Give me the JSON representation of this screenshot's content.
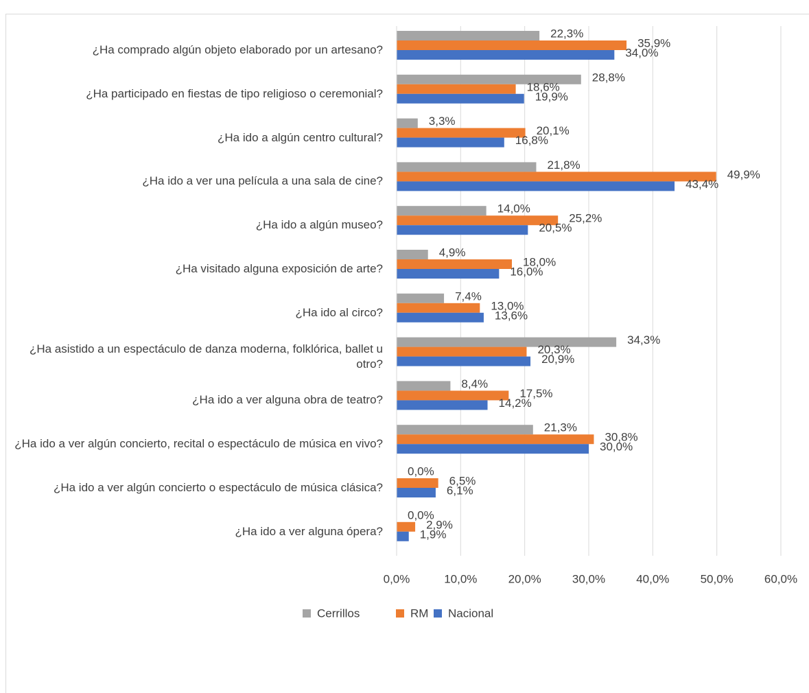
{
  "chart_data": {
    "type": "bar",
    "orientation": "horizontal",
    "categories": [
      "¿Ha comprado algún objeto elaborado por un artesano?",
      "¿Ha participado en fiestas de tipo religioso o ceremonial?",
      "¿Ha ido a algún centro cultural?",
      "¿Ha ido a ver una película a una sala de cine?",
      "¿Ha ido a algún museo?",
      "¿Ha visitado alguna exposición de arte?",
      "¿Ha ido al circo?",
      "¿Ha asistido a un espectáculo de danza moderna, folklórica, ballet u otro?",
      "¿Ha ido a ver alguna obra de teatro?",
      "¿Ha ido a ver algún concierto, recital o espectáculo de música en vivo?",
      "¿Ha ido a ver algún concierto o espectáculo de música clásica?",
      "¿Ha ido a ver alguna ópera?"
    ],
    "series": [
      {
        "name": "Cerrillos",
        "color": "#a5a5a5",
        "values": [
          22.3,
          28.8,
          3.3,
          21.8,
          14.0,
          4.9,
          7.4,
          34.3,
          8.4,
          21.3,
          0.0,
          0.0
        ],
        "value_labels": [
          "22,3%",
          "28,8%",
          "3,3%",
          "21,8%",
          "14,0%",
          "4,9%",
          "7,4%",
          "34,3%",
          "8,4%",
          "21,3%",
          "0,0%",
          "0,0%"
        ]
      },
      {
        "name": "RM",
        "color": "#ed7d31",
        "values": [
          35.9,
          18.6,
          20.1,
          49.9,
          25.2,
          18.0,
          13.0,
          20.3,
          17.5,
          30.8,
          6.5,
          2.9
        ],
        "value_labels": [
          "35,9%",
          "18,6%",
          "20,1%",
          "49,9%",
          "25,2%",
          "18,0%",
          "13,0%",
          "20,3%",
          "17,5%",
          "30,8%",
          "6,5%",
          "2,9%"
        ]
      },
      {
        "name": "Nacional",
        "color": "#4472c4",
        "values": [
          34.0,
          19.9,
          16.8,
          43.4,
          20.5,
          16.0,
          13.6,
          20.9,
          14.2,
          30.0,
          6.1,
          1.9
        ],
        "value_labels": [
          "34,0%",
          "19,9%",
          "16,8%",
          "43,4%",
          "20,5%",
          "16,0%",
          "13,6%",
          "20,9%",
          "14,2%",
          "30,0%",
          "6,1%",
          "1,9%"
        ]
      }
    ],
    "xlim": [
      0,
      60
    ],
    "xticks": [
      {
        "value": 0,
        "label": "0,0%"
      },
      {
        "value": 10,
        "label": "10,0%"
      },
      {
        "value": 20,
        "label": "20,0%"
      },
      {
        "value": 30,
        "label": "30,0%"
      },
      {
        "value": 40,
        "label": "40,0%"
      },
      {
        "value": 50,
        "label": "50,0%"
      },
      {
        "value": 60,
        "label": "60,0%"
      }
    ],
    "grid": true,
    "legend": "bottom"
  }
}
